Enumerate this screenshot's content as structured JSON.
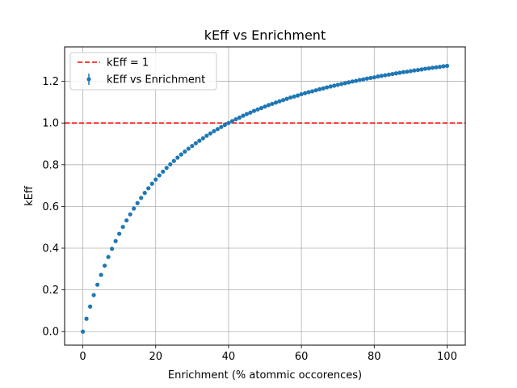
{
  "chart_data": {
    "type": "scatter",
    "title": "kEff vs Enrichment",
    "xlabel": "Enrichment (% atommic occorences)",
    "ylabel": "kEff",
    "xlim": [
      -5,
      105
    ],
    "ylim": [
      -0.065,
      1.365
    ],
    "xticks": [
      0,
      20,
      40,
      60,
      80,
      100
    ],
    "yticks": [
      0.0,
      0.2,
      0.4,
      0.6,
      0.8,
      1.0,
      1.2
    ],
    "grid": true,
    "legend": {
      "placement": "top-left",
      "entries": [
        "kEff = 1",
        "kEff vs Enrichment"
      ]
    },
    "reference_line": {
      "name": "kEff = 1",
      "y": 1.0,
      "color": "#ff0000",
      "style": "dashed"
    },
    "series": [
      {
        "name": "kEff vs Enrichment",
        "color": "#1f77b4",
        "x": [
          0,
          1,
          2,
          3,
          4,
          5,
          6,
          7,
          8,
          9,
          10,
          11,
          12,
          13,
          14,
          15,
          16,
          17,
          18,
          19,
          20,
          21,
          22,
          23,
          24,
          25,
          26,
          27,
          28,
          29,
          30,
          31,
          32,
          33,
          34,
          35,
          36,
          37,
          38,
          39,
          40,
          41,
          42,
          43,
          44,
          45,
          46,
          47,
          48,
          49,
          50,
          51,
          52,
          53,
          54,
          55,
          56,
          57,
          58,
          59,
          60,
          61,
          62,
          63,
          64,
          65,
          66,
          67,
          68,
          69,
          70,
          71,
          72,
          73,
          74,
          75,
          76,
          77,
          78,
          79,
          80,
          81,
          82,
          83,
          84,
          85,
          86,
          87,
          88,
          89,
          90,
          91,
          92,
          93,
          94,
          95,
          96,
          97,
          98,
          99,
          100
        ],
        "y": [
          0.0,
          0.062,
          0.12,
          0.175,
          0.225,
          0.272,
          0.316,
          0.358,
          0.397,
          0.434,
          0.469,
          0.502,
          0.533,
          0.562,
          0.59,
          0.616,
          0.641,
          0.665,
          0.687,
          0.709,
          0.729,
          0.749,
          0.767,
          0.785,
          0.802,
          0.818,
          0.834,
          0.849,
          0.863,
          0.877,
          0.89,
          0.903,
          0.915,
          0.927,
          0.939,
          0.95,
          0.961,
          0.971,
          0.981,
          0.991,
          1.0,
          1.009,
          1.018,
          1.026,
          1.035,
          1.043,
          1.05,
          1.058,
          1.065,
          1.072,
          1.079,
          1.086,
          1.092,
          1.098,
          1.104,
          1.11,
          1.116,
          1.122,
          1.127,
          1.132,
          1.138,
          1.143,
          1.148,
          1.152,
          1.157,
          1.162,
          1.166,
          1.171,
          1.175,
          1.179,
          1.183,
          1.187,
          1.191,
          1.195,
          1.199,
          1.202,
          1.206,
          1.209,
          1.213,
          1.216,
          1.219,
          1.223,
          1.226,
          1.229,
          1.232,
          1.235,
          1.238,
          1.241,
          1.244,
          1.246,
          1.249,
          1.252,
          1.254,
          1.257,
          1.26,
          1.262,
          1.265,
          1.267,
          1.269,
          1.272,
          1.274
        ]
      }
    ]
  }
}
